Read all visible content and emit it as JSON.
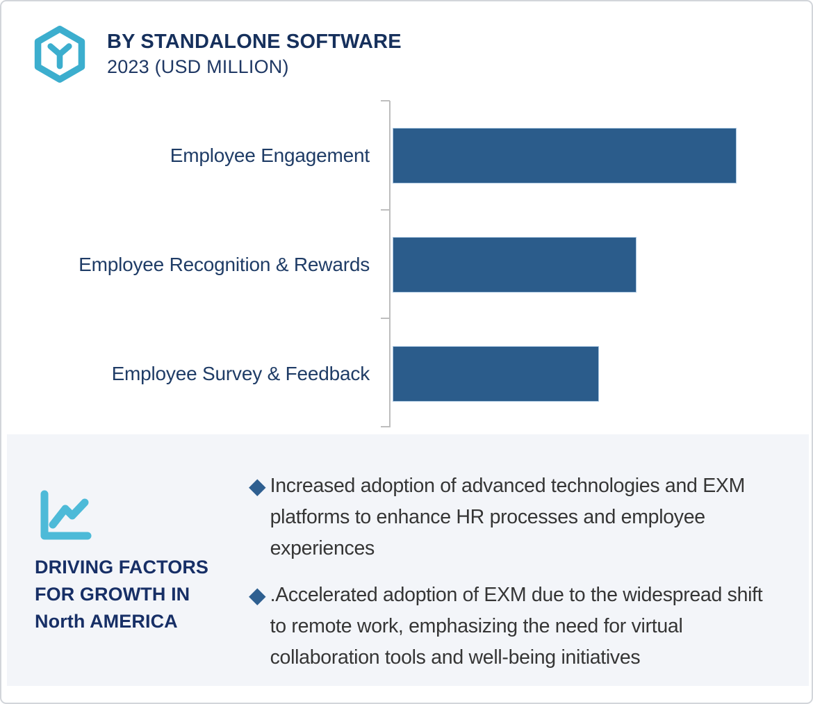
{
  "header": {
    "title": "BY STANDALONE SOFTWARE",
    "subtitle": "2023 (USD MILLION)",
    "icon": "hexagon-cube-logo-icon"
  },
  "chart_data": {
    "type": "bar",
    "orientation": "horizontal",
    "title": "BY STANDALONE SOFTWARE",
    "subtitle": "2023 (USD MILLION)",
    "unit": "USD Million",
    "categories": [
      "Employee Engagement",
      "Employee Recognition & Rewards",
      "Employee Survey & Feedback"
    ],
    "values": [
      100,
      71,
      60
    ],
    "values_note": "relative bar lengths as % of longest bar; chart shows no numeric value labels or axis ticks",
    "xlabel": "",
    "ylabel": "",
    "legend": "none",
    "grid": false,
    "bar_color": "#2b5c8b",
    "bar_border_color": "#a9c6e0",
    "axis_color": "#bebebe",
    "label_color": "#1f3c66"
  },
  "factors": {
    "icon": "line-chart-icon",
    "heading_lines": [
      "DRIVING FACTORS",
      "FOR GROWTH IN",
      "North AMERICA"
    ],
    "bullet_glyph": "◆",
    "bullets": [
      "Increased adoption of advanced technologies and EXM platforms to enhance HR processes and employee experiences",
      ".Accelerated adoption of EXM due to the widespread shift to remote work, emphasizing the need for virtual collaboration tools and well-being initiatives"
    ]
  },
  "colors": {
    "accent_cyan": "#3caece",
    "bar_blue": "#2b5c8b",
    "navy": "#16305c",
    "panel_bg": "#f3f5f9",
    "bullet_diamond": "#2e5f90"
  }
}
